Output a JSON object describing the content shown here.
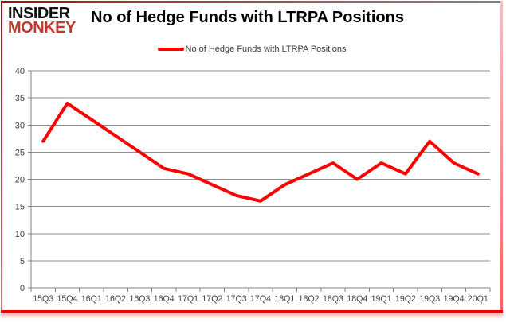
{
  "header": {
    "logo_line1": "INSIDER",
    "logo_line2": "MONKEY",
    "title": "No of Hedge Funds with LTRPA Positions"
  },
  "legend": {
    "label": "No of Hedge Funds with LTRPA Positions"
  },
  "chart_data": {
    "type": "line",
    "title": "No of Hedge Funds with LTRPA Positions",
    "categories": [
      "15Q3",
      "15Q4",
      "16Q1",
      "16Q2",
      "16Q3",
      "16Q4",
      "17Q1",
      "17Q2",
      "17Q3",
      "17Q4",
      "18Q1",
      "18Q2",
      "18Q3",
      "18Q4",
      "19Q1",
      "19Q2",
      "19Q3",
      "19Q4",
      "20Q1"
    ],
    "series": [
      {
        "name": "No of Hedge Funds with LTRPA Positions",
        "values": [
          27,
          34,
          31,
          28,
          25,
          22,
          21,
          19,
          17,
          16,
          19,
          21,
          23,
          20,
          23,
          21,
          27,
          23,
          21
        ]
      }
    ],
    "ylim": [
      0,
      40
    ],
    "yticks": [
      0,
      5,
      10,
      15,
      20,
      25,
      30,
      35,
      40
    ],
    "xlabel": "",
    "ylabel": "",
    "grid": true,
    "legend_position": "top-center",
    "line_color": "#ff0000",
    "line_width": 4
  },
  "colors": {
    "accent_red": "#ff0000",
    "logo_red": "#c0392b",
    "grid_gray": "#8c8c8c",
    "axis_gray": "#808080",
    "tick_text": "#3f3f3f",
    "title_black": "#000000"
  }
}
